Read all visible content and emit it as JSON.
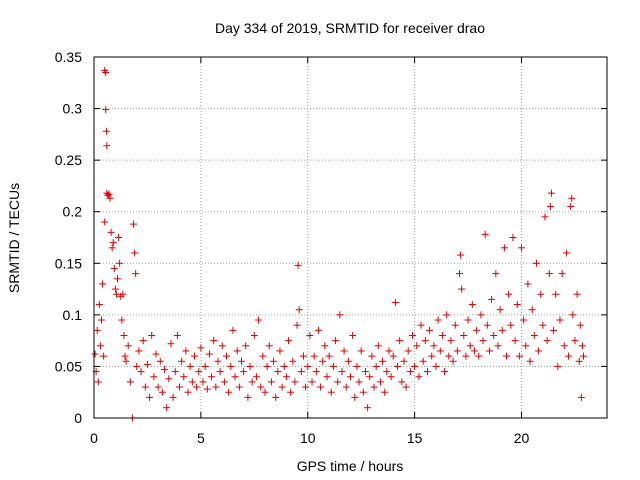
{
  "chart_data": {
    "type": "scatter",
    "title": "Day 334 of 2019, SRMTID for receiver drao",
    "xlabel": "GPS time / hours",
    "ylabel": "SRMTID / TECUs",
    "xlim": [
      0,
      24
    ],
    "ylim": [
      0,
      0.35
    ],
    "xticks": [
      0,
      5,
      10,
      15,
      20
    ],
    "xtick_labels": [
      "0",
      "5",
      "10",
      "15",
      "20"
    ],
    "yticks": [
      0,
      0.05,
      0.1,
      0.15,
      0.2,
      0.25,
      0.3,
      0.35
    ],
    "ytick_labels": [
      "0",
      "0.05",
      "0.1",
      "0.15",
      "0.2",
      "0.25",
      "0.3",
      "0.35"
    ],
    "grid": true,
    "marker": "plus",
    "color": "#e00000",
    "series": [
      {
        "name": "SRMTID",
        "points": [
          [
            0.05,
            0.062
          ],
          [
            0.1,
            0.045
          ],
          [
            0.15,
            0.085
          ],
          [
            0.2,
            0.035
          ],
          [
            0.25,
            0.11
          ],
          [
            0.3,
            0.07
          ],
          [
            0.35,
            0.095
          ],
          [
            0.4,
            0.13
          ],
          [
            0.45,
            0.06
          ],
          [
            0.5,
            0.19
          ],
          [
            0.5,
            0.337
          ],
          [
            0.55,
            0.335
          ],
          [
            0.55,
            0.299
          ],
          [
            0.58,
            0.278
          ],
          [
            0.6,
            0.264
          ],
          [
            0.6,
            0.218
          ],
          [
            0.65,
            0.216
          ],
          [
            0.7,
            0.217
          ],
          [
            0.75,
            0.213
          ],
          [
            0.8,
            0.18
          ],
          [
            0.85,
            0.165
          ],
          [
            0.9,
            0.17
          ],
          [
            0.95,
            0.145
          ],
          [
            1.0,
            0.125
          ],
          [
            1.05,
            0.12
          ],
          [
            1.1,
            0.135
          ],
          [
            1.15,
            0.175
          ],
          [
            1.2,
            0.15
          ],
          [
            1.25,
            0.118
          ],
          [
            1.3,
            0.095
          ],
          [
            1.35,
            0.12
          ],
          [
            1.4,
            0.08
          ],
          [
            1.45,
            0.06
          ],
          [
            1.5,
            0.055
          ],
          [
            1.6,
            0.07
          ],
          [
            1.7,
            0.035
          ],
          [
            1.8,
            0.0
          ],
          [
            1.85,
            0.188
          ],
          [
            1.9,
            0.16
          ],
          [
            1.95,
            0.14
          ],
          [
            2.0,
            0.05
          ],
          [
            2.1,
            0.065
          ],
          [
            2.2,
            0.045
          ],
          [
            2.3,
            0.075
          ],
          [
            2.4,
            0.03
          ],
          [
            2.5,
            0.052
          ],
          [
            2.6,
            0.02
          ],
          [
            2.7,
            0.08
          ],
          [
            2.8,
            0.04
          ],
          [
            2.9,
            0.062
          ],
          [
            3.0,
            0.03
          ],
          [
            3.1,
            0.055
          ],
          [
            3.2,
            0.025
          ],
          [
            3.3,
            0.047
          ],
          [
            3.4,
            0.01
          ],
          [
            3.5,
            0.038
          ],
          [
            3.6,
            0.072
          ],
          [
            3.7,
            0.02
          ],
          [
            3.8,
            0.045
          ],
          [
            3.9,
            0.08
          ],
          [
            4.0,
            0.03
          ],
          [
            4.1,
            0.055
          ],
          [
            4.2,
            0.04
          ],
          [
            4.3,
            0.065
          ],
          [
            4.4,
            0.025
          ],
          [
            4.5,
            0.05
          ],
          [
            4.6,
            0.035
          ],
          [
            4.7,
            0.06
          ],
          [
            4.8,
            0.03
          ],
          [
            4.9,
            0.045
          ],
          [
            5.0,
            0.068
          ],
          [
            5.1,
            0.035
          ],
          [
            5.2,
            0.05
          ],
          [
            5.3,
            0.028
          ],
          [
            5.4,
            0.062
          ],
          [
            5.5,
            0.04
          ],
          [
            5.6,
            0.075
          ],
          [
            5.7,
            0.03
          ],
          [
            5.8,
            0.055
          ],
          [
            5.9,
            0.045
          ],
          [
            6.0,
            0.07
          ],
          [
            6.1,
            0.035
          ],
          [
            6.2,
            0.06
          ],
          [
            6.3,
            0.025
          ],
          [
            6.4,
            0.05
          ],
          [
            6.5,
            0.085
          ],
          [
            6.6,
            0.04
          ],
          [
            6.7,
            0.065
          ],
          [
            6.8,
            0.03
          ],
          [
            6.9,
            0.055
          ],
          [
            7.0,
            0.045
          ],
          [
            7.1,
            0.07
          ],
          [
            7.2,
            0.02
          ],
          [
            7.3,
            0.05
          ],
          [
            7.4,
            0.035
          ],
          [
            7.5,
            0.08
          ],
          [
            7.6,
            0.04
          ],
          [
            7.7,
            0.095
          ],
          [
            7.8,
            0.03
          ],
          [
            7.9,
            0.06
          ],
          [
            8.0,
            0.025
          ],
          [
            8.1,
            0.05
          ],
          [
            8.2,
            0.07
          ],
          [
            8.3,
            0.035
          ],
          [
            8.4,
            0.055
          ],
          [
            8.5,
            0.02
          ],
          [
            8.6,
            0.045
          ],
          [
            8.7,
            0.065
          ],
          [
            8.8,
            0.03
          ],
          [
            8.9,
            0.05
          ],
          [
            9.0,
            0.04
          ],
          [
            9.1,
            0.075
          ],
          [
            9.2,
            0.025
          ],
          [
            9.3,
            0.055
          ],
          [
            9.4,
            0.035
          ],
          [
            9.5,
            0.09
          ],
          [
            9.55,
            0.148
          ],
          [
            9.6,
            0.105
          ],
          [
            9.7,
            0.045
          ],
          [
            9.8,
            0.06
          ],
          [
            9.9,
            0.03
          ],
          [
            10.0,
            0.05
          ],
          [
            10.1,
            0.08
          ],
          [
            10.2,
            0.035
          ],
          [
            10.3,
            0.06
          ],
          [
            10.4,
            0.045
          ],
          [
            10.5,
            0.085
          ],
          [
            10.6,
            0.03
          ],
          [
            10.7,
            0.055
          ],
          [
            10.8,
            0.07
          ],
          [
            10.9,
            0.04
          ],
          [
            11.0,
            0.06
          ],
          [
            11.1,
            0.025
          ],
          [
            11.2,
            0.05
          ],
          [
            11.3,
            0.075
          ],
          [
            11.4,
            0.035
          ],
          [
            11.5,
            0.1
          ],
          [
            11.6,
            0.045
          ],
          [
            11.7,
            0.065
          ],
          [
            11.8,
            0.03
          ],
          [
            11.9,
            0.055
          ],
          [
            12.0,
            0.04
          ],
          [
            12.1,
            0.08
          ],
          [
            12.2,
            0.02
          ],
          [
            12.3,
            0.05
          ],
          [
            12.4,
            0.035
          ],
          [
            12.5,
            0.065
          ],
          [
            12.6,
            0.025
          ],
          [
            12.7,
            0.045
          ],
          [
            12.8,
            0.01
          ],
          [
            12.9,
            0.04
          ],
          [
            13.0,
            0.06
          ],
          [
            13.1,
            0.03
          ],
          [
            13.2,
            0.05
          ],
          [
            13.3,
            0.07
          ],
          [
            13.4,
            0.035
          ],
          [
            13.5,
            0.055
          ],
          [
            13.6,
            0.025
          ],
          [
            13.7,
            0.045
          ],
          [
            13.8,
            0.065
          ],
          [
            13.9,
            0.04
          ],
          [
            14.0,
            0.06
          ],
          [
            14.1,
            0.112
          ],
          [
            14.2,
            0.05
          ],
          [
            14.3,
            0.075
          ],
          [
            14.4,
            0.035
          ],
          [
            14.5,
            0.055
          ],
          [
            14.6,
            0.03
          ],
          [
            14.7,
            0.065
          ],
          [
            14.8,
            0.045
          ],
          [
            14.9,
            0.08
          ],
          [
            15.0,
            0.05
          ],
          [
            15.1,
            0.07
          ],
          [
            15.2,
            0.04
          ],
          [
            15.3,
            0.09
          ],
          [
            15.4,
            0.055
          ],
          [
            15.5,
            0.075
          ],
          [
            15.6,
            0.045
          ],
          [
            15.7,
            0.085
          ],
          [
            15.8,
            0.06
          ],
          [
            15.9,
            0.07
          ],
          [
            16.0,
            0.05
          ],
          [
            16.1,
            0.095
          ],
          [
            16.2,
            0.065
          ],
          [
            16.3,
            0.08
          ],
          [
            16.4,
            0.045
          ],
          [
            16.5,
            0.1
          ],
          [
            16.6,
            0.06
          ],
          [
            16.7,
            0.075
          ],
          [
            16.8,
            0.055
          ],
          [
            16.9,
            0.09
          ],
          [
            17.0,
            0.065
          ],
          [
            17.1,
            0.14
          ],
          [
            17.15,
            0.158
          ],
          [
            17.2,
            0.125
          ],
          [
            17.3,
            0.08
          ],
          [
            17.4,
            0.06
          ],
          [
            17.5,
            0.095
          ],
          [
            17.6,
            0.07
          ],
          [
            17.7,
            0.11
          ],
          [
            17.8,
            0.065
          ],
          [
            17.9,
            0.085
          ],
          [
            18.0,
            0.06
          ],
          [
            18.1,
            0.1
          ],
          [
            18.2,
            0.075
          ],
          [
            18.3,
            0.178
          ],
          [
            18.4,
            0.09
          ],
          [
            18.5,
            0.065
          ],
          [
            18.6,
            0.115
          ],
          [
            18.7,
            0.08
          ],
          [
            18.8,
            0.14
          ],
          [
            18.9,
            0.07
          ],
          [
            19.0,
            0.105
          ],
          [
            19.1,
            0.085
          ],
          [
            19.2,
            0.165
          ],
          [
            19.3,
            0.06
          ],
          [
            19.4,
            0.12
          ],
          [
            19.5,
            0.09
          ],
          [
            19.6,
            0.175
          ],
          [
            19.7,
            0.075
          ],
          [
            19.8,
            0.11
          ],
          [
            19.9,
            0.06
          ],
          [
            20.0,
            0.165
          ],
          [
            20.1,
            0.095
          ],
          [
            20.2,
            0.07
          ],
          [
            20.3,
            0.13
          ],
          [
            20.4,
            0.055
          ],
          [
            20.5,
            0.105
          ],
          [
            20.6,
            0.08
          ],
          [
            20.7,
            0.15
          ],
          [
            20.8,
            0.065
          ],
          [
            20.9,
            0.12
          ],
          [
            21.0,
            0.09
          ],
          [
            21.1,
            0.195
          ],
          [
            21.2,
            0.075
          ],
          [
            21.3,
            0.14
          ],
          [
            21.35,
            0.205
          ],
          [
            21.4,
            0.218
          ],
          [
            21.5,
            0.085
          ],
          [
            21.6,
            0.12
          ],
          [
            21.7,
            0.05
          ],
          [
            21.8,
            0.095
          ],
          [
            21.9,
            0.14
          ],
          [
            22.0,
            0.07
          ],
          [
            22.1,
            0.16
          ],
          [
            22.2,
            0.06
          ],
          [
            22.3,
            0.205
          ],
          [
            22.35,
            0.213
          ],
          [
            22.4,
            0.1
          ],
          [
            22.5,
            0.075
          ],
          [
            22.6,
            0.12
          ],
          [
            22.7,
            0.055
          ],
          [
            22.75,
            0.09
          ],
          [
            22.8,
            0.02
          ],
          [
            22.85,
            0.07
          ],
          [
            22.9,
            0.06
          ]
        ]
      }
    ]
  }
}
